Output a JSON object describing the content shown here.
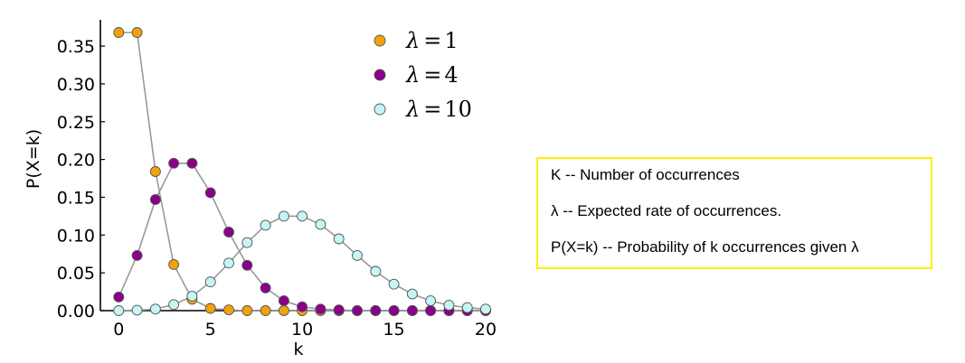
{
  "chart_data": {
    "type": "line",
    "title": "",
    "xlabel": "k",
    "ylabel": "P(X=k)",
    "xlim": [
      -1,
      20
    ],
    "ylim": [
      0,
      0.4
    ],
    "xticks": [
      0,
      5,
      10,
      15,
      20
    ],
    "xtick_labels": [
      "0",
      "5",
      "10",
      "15",
      "20"
    ],
    "yticks": [
      0.0,
      0.05,
      0.1,
      0.15,
      0.2,
      0.25,
      0.3,
      0.35
    ],
    "ytick_labels": [
      "0.00",
      "0.05",
      "0.10",
      "0.15",
      "0.20",
      "0.25",
      "0.30",
      "0.35"
    ],
    "grid": false,
    "legend_position": "top-right",
    "line_color": "#999999",
    "x": [
      0,
      1,
      2,
      3,
      4,
      5,
      6,
      7,
      8,
      9,
      10,
      11,
      12,
      13,
      14,
      15,
      16,
      17,
      18,
      19,
      20
    ],
    "series": [
      {
        "name_symbol": "λ",
        "name_value": "1",
        "color": "#f0a30a",
        "values": [
          0.368,
          0.368,
          0.184,
          0.061,
          0.015,
          0.003,
          0.001,
          0.0,
          0.0,
          0.0,
          0.0,
          0.0,
          0.0,
          0.0,
          0.0,
          0.0,
          0.0,
          0.0,
          0.0,
          0.0,
          0.0
        ]
      },
      {
        "name_symbol": "λ",
        "name_value": "4",
        "color": "#8b008b",
        "values": [
          0.018,
          0.073,
          0.147,
          0.195,
          0.195,
          0.156,
          0.104,
          0.06,
          0.03,
          0.013,
          0.005,
          0.002,
          0.001,
          0.0,
          0.0,
          0.0,
          0.0,
          0.0,
          0.0,
          0.0,
          0.0
        ]
      },
      {
        "name_symbol": "λ",
        "name_value": "10",
        "color": "#c6f5f5",
        "values": [
          0.0,
          0.0005,
          0.002,
          0.008,
          0.019,
          0.038,
          0.063,
          0.09,
          0.113,
          0.125,
          0.125,
          0.114,
          0.095,
          0.073,
          0.052,
          0.035,
          0.022,
          0.013,
          0.007,
          0.004,
          0.002
        ]
      }
    ]
  },
  "info_box": {
    "lines": [
      "K -- Number of occurrences",
      "λ -- Expected rate of occurrences.",
      "P(X=k) -- Probability of k occurrences given λ"
    ],
    "border_color": "#ffee00"
  }
}
